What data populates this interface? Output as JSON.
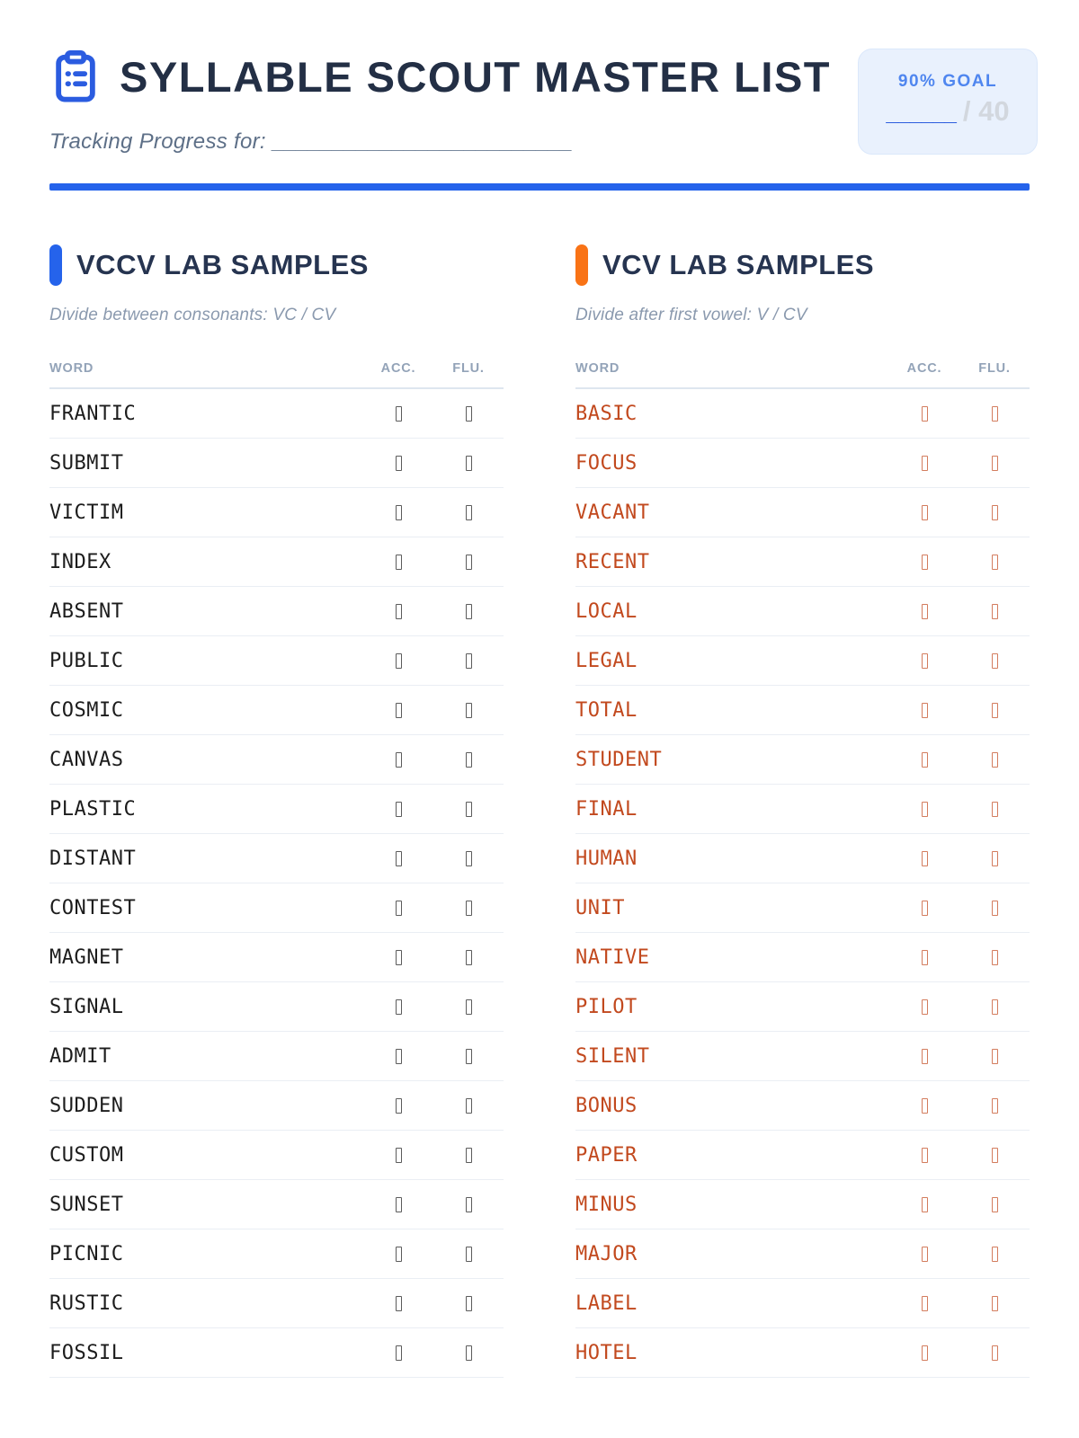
{
  "header": {
    "title": "SYLLABLE SCOUT MASTER LIST",
    "tracking_label": "Tracking Progress for:",
    "tracking_blank": "_________________________",
    "goal_badge": {
      "label": "90% GOAL",
      "blank": "______",
      "total": "/ 40"
    }
  },
  "colors": {
    "accent_blue": "#2563eb",
    "accent_orange": "#f97316",
    "title_navy": "#232f45",
    "section_navy": "#263450",
    "left_word_color": "#1c1c1c",
    "right_word_color": "#c2491e",
    "badge_background": "#e9f1fd",
    "badge_label_blue": "#4f86ef"
  },
  "sections": [
    {
      "title": "VCCV LAB SAMPLES",
      "subtitle": "Divide between consonants: VC / CV",
      "accent_color": "#2563eb",
      "word_color": "#1c1c1c",
      "columns": [
        "WORD",
        "ACC.",
        "FLU."
      ],
      "words": [
        "FRANTIC",
        "SUBMIT",
        "VICTIM",
        "INDEX",
        "ABSENT",
        "PUBLIC",
        "COSMIC",
        "CANVAS",
        "PLASTIC",
        "DISTANT",
        "CONTEST",
        "MAGNET",
        "SIGNAL",
        "ADMIT",
        "SUDDEN",
        "CUSTOM",
        "SUNSET",
        "PICNIC",
        "RUSTIC",
        "FOSSIL"
      ]
    },
    {
      "title": "VCV LAB SAMPLES",
      "subtitle": "Divide after first vowel: V / CV",
      "accent_color": "#f97316",
      "word_color": "#c2491e",
      "columns": [
        "WORD",
        "ACC.",
        "FLU."
      ],
      "words": [
        "BASIC",
        "FOCUS",
        "VACANT",
        "RECENT",
        "LOCAL",
        "LEGAL",
        "TOTAL",
        "STUDENT",
        "FINAL",
        "HUMAN",
        "UNIT",
        "NATIVE",
        "PILOT",
        "SILENT",
        "BONUS",
        "PAPER",
        "MINUS",
        "MAJOR",
        "LABEL",
        "HOTEL"
      ]
    }
  ]
}
